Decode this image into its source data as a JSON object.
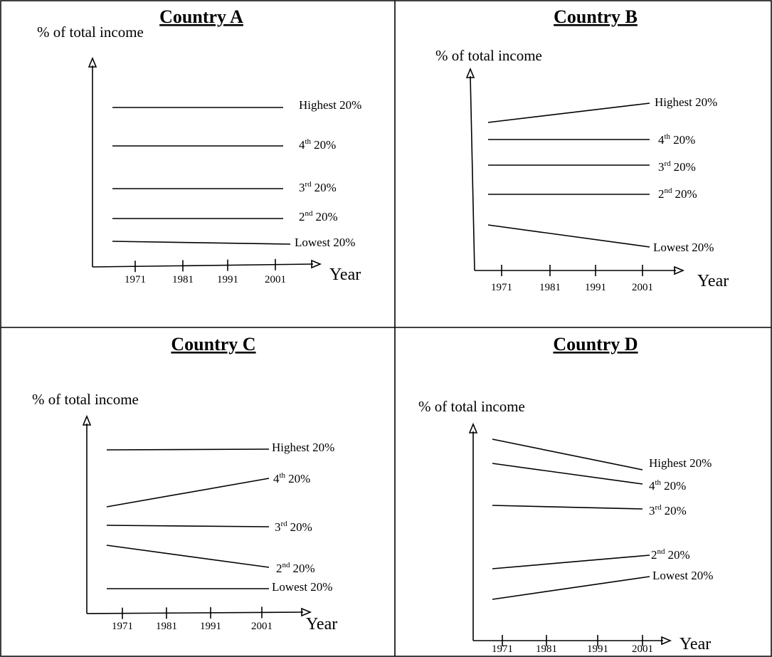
{
  "panels": [
    {
      "title": "Country A",
      "y_axis_label": "% of total income",
      "x_axis_label": "Year",
      "ticks": [
        "1971",
        "1981",
        "1991",
        "2001"
      ],
      "lines": [
        {
          "label": "Highest 20%"
        },
        {
          "label": "4",
          "sup": "th",
          "label_tail": "20%"
        },
        {
          "label": "3",
          "sup": "rd",
          "label_tail": "20%"
        },
        {
          "label": "2",
          "sup": "nd",
          "label_tail": "20%"
        },
        {
          "label": "Lowest 20%"
        }
      ]
    },
    {
      "title": "Country B",
      "y_axis_label": "% of total income",
      "x_axis_label": "Year",
      "ticks": [
        "1971",
        "1981",
        "1991",
        "2001"
      ],
      "lines": [
        {
          "label": "Highest 20%"
        },
        {
          "label": "4",
          "sup": "th",
          "label_tail": "20%"
        },
        {
          "label": "3",
          "sup": "rd",
          "label_tail": "20%"
        },
        {
          "label": "2",
          "sup": "nd",
          "label_tail": "20%"
        },
        {
          "label": "Lowest 20%"
        }
      ]
    },
    {
      "title": "Country C",
      "y_axis_label": "% of total income",
      "x_axis_label": "Year",
      "ticks": [
        "1971",
        "1981",
        "1991",
        "2001"
      ],
      "lines": [
        {
          "label": "Highest 20%"
        },
        {
          "label": "4",
          "sup": "th",
          "label_tail": "20%"
        },
        {
          "label": "3",
          "sup": "rd",
          "label_tail": "20%"
        },
        {
          "label": "2",
          "sup": "nd",
          "label_tail": "20%"
        },
        {
          "label": "Lowest 20%"
        }
      ]
    },
    {
      "title": "Country D",
      "y_axis_label": "% of total income",
      "x_axis_label": "Year",
      "ticks": [
        "1971",
        "1981",
        "1991",
        "2001"
      ],
      "lines": [
        {
          "label": "Highest 20%"
        },
        {
          "label": "4",
          "sup": "th",
          "label_tail": "20%"
        },
        {
          "label": "3",
          "sup": "rd",
          "label_tail": "20%"
        },
        {
          "label": "2",
          "sup": "nd",
          "label_tail": "20%"
        },
        {
          "label": "Lowest 20%"
        }
      ]
    }
  ]
}
